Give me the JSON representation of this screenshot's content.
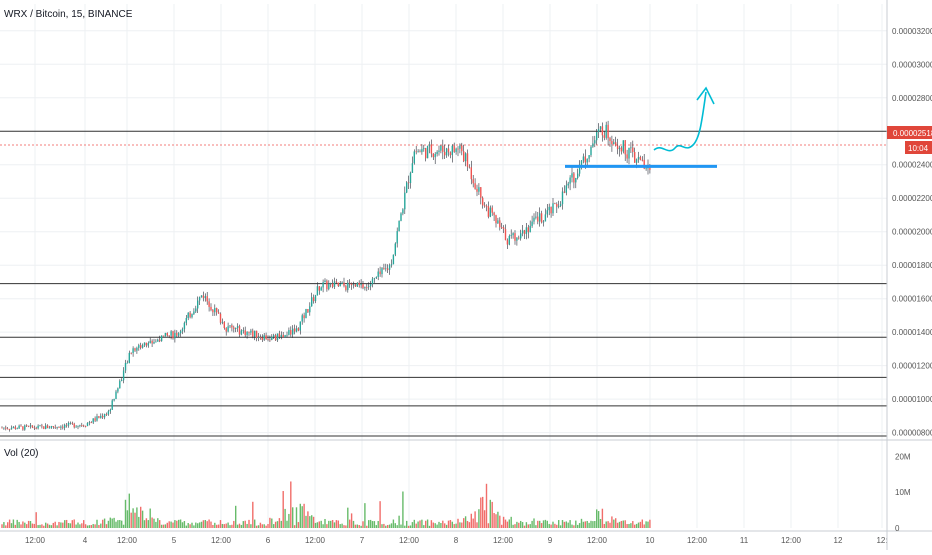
{
  "header": {
    "symbol_title": "WRX / Bitcoin, 15, BINANCE",
    "volume_label": "Vol (20)"
  },
  "price_axis": {
    "ticks": [
      "0.00003200",
      "0.00003000",
      "0.00002800",
      "0.00002600",
      "0.00002400",
      "0.00002200",
      "0.00002000",
      "0.00001800",
      "0.00001600",
      "0.00001400",
      "0.00001200",
      "0.00001000",
      "0.00000800"
    ],
    "last_price_label": "0.00002518",
    "countdown_label": "10:04"
  },
  "volume_axis": {
    "ticks": [
      "20M",
      "10M",
      "0"
    ]
  },
  "time_axis": {
    "ticks": [
      "12:00",
      "4",
      "12:00",
      "5",
      "12:00",
      "6",
      "12:00",
      "7",
      "12:00",
      "8",
      "12:00",
      "9",
      "12:00",
      "10",
      "12:00",
      "11",
      "12:00",
      "12",
      "12:"
    ]
  },
  "colors": {
    "up_candle": "#26a69a",
    "down_candle": "#ef5350",
    "volume_up": "#4caf50",
    "volume_down": "#ef5350",
    "support_line": "#2196f3",
    "projection_arrow": "#00bcd4",
    "last_price_badge": "#e0463a",
    "horizontal_levels": "#333333"
  },
  "chart_data": {
    "type": "candlestick",
    "series_name": "WRX / Bitcoin",
    "interval": "15",
    "exchange": "BINANCE",
    "ylim": [
      7.8e-06,
      3.36e-05
    ],
    "grid": true,
    "last_price": 2.518e-05,
    "horizontal_levels": [
      2.6e-05,
      1.69e-05,
      1.37e-05,
      1.13e-05,
      9.6e-06,
      7.8e-06
    ],
    "support_level": 2.39e-05,
    "price_path": [
      {
        "day": "3 12:00",
        "price": 8.3e-06
      },
      {
        "day": "4 00:00",
        "price": 8.5e-06
      },
      {
        "day": "4 06:00",
        "price": 9.2e-06
      },
      {
        "day": "4 12:00",
        "price": 1.3e-05
      },
      {
        "day": "5 00:00",
        "price": 1.4e-05
      },
      {
        "day": "5 06:00",
        "price": 1.63e-05
      },
      {
        "day": "5 12:00",
        "price": 1.43e-05
      },
      {
        "day": "6 00:00",
        "price": 1.36e-05
      },
      {
        "day": "6 06:00",
        "price": 1.41e-05
      },
      {
        "day": "6 12:00",
        "price": 1.68e-05
      },
      {
        "day": "7 00:00",
        "price": 1.67e-05
      },
      {
        "day": "7 06:00",
        "price": 1.8e-05
      },
      {
        "day": "7 12:00",
        "price": 2.48e-05
      },
      {
        "day": "8 00:00",
        "price": 2.49e-05
      },
      {
        "day": "8 06:00",
        "price": 2.16e-05
      },
      {
        "day": "8 12:00",
        "price": 1.95e-05
      },
      {
        "day": "9 00:00",
        "price": 2.14e-05
      },
      {
        "day": "9 12:00",
        "price": 2.62e-05
      },
      {
        "day": "10 00:00",
        "price": 2.36e-05
      },
      {
        "day": "10 06:00",
        "price": 2.52e-05
      }
    ],
    "volume_peaks_M": [
      {
        "day": "4 12:00",
        "volume": 20
      },
      {
        "day": "6 06:00",
        "volume": 19
      },
      {
        "day": "8 06:00",
        "volume": 20
      },
      {
        "day": "9 12:00",
        "volume": 10
      }
    ]
  }
}
